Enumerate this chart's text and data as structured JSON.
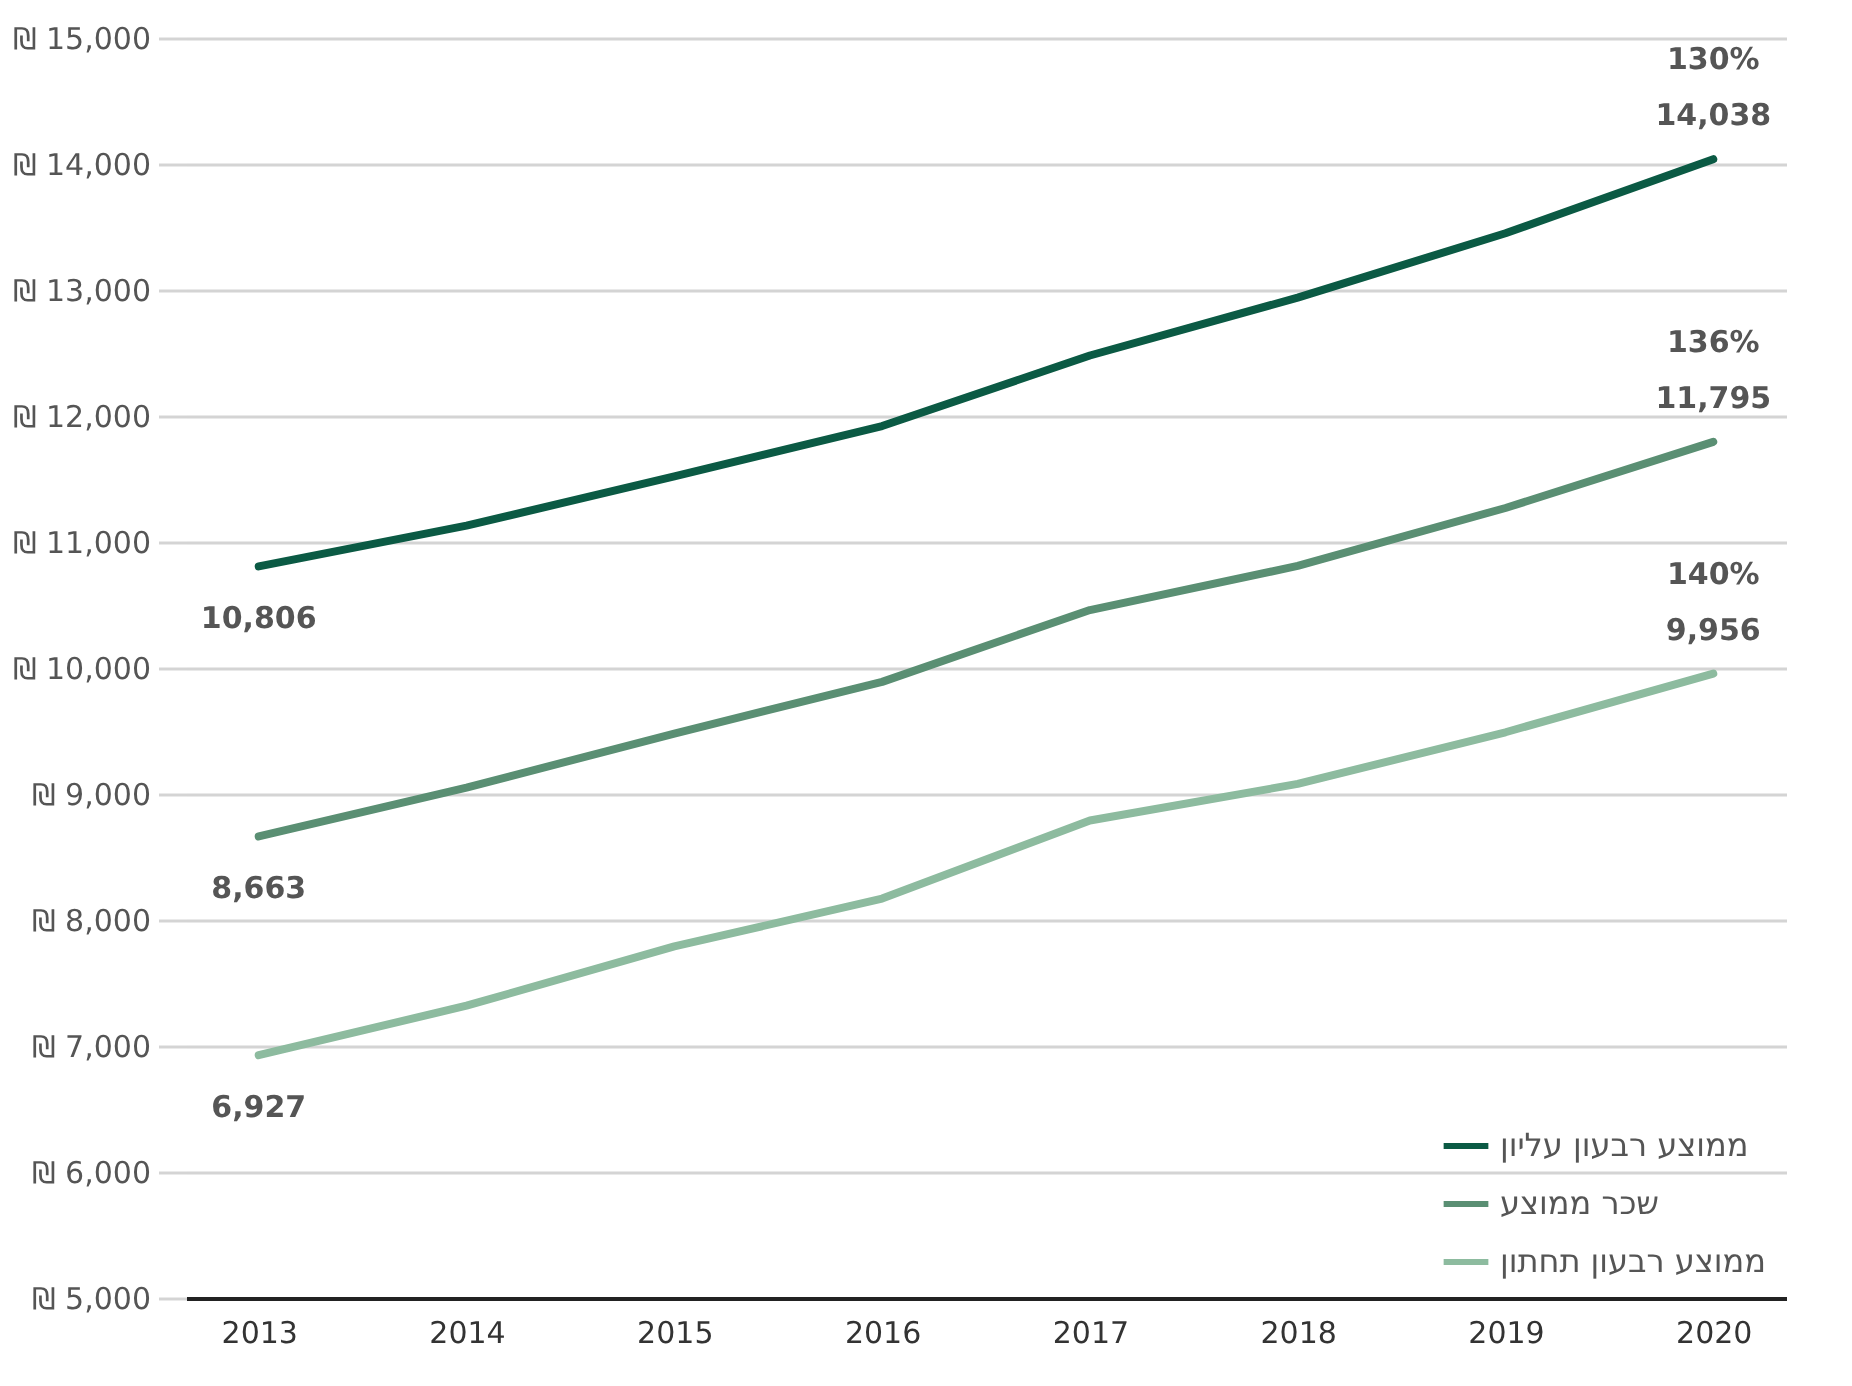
{
  "chart_data": {
    "type": "line",
    "categories": [
      "2013",
      "2014",
      "2015",
      "2016",
      "2017",
      "2018",
      "2019",
      "2020"
    ],
    "series": [
      {
        "name": "ממוצע רבעון עליון",
        "color": "#0b5a44",
        "values": [
          10806,
          11130,
          11520,
          11920,
          12480,
          12940,
          13450,
          14038
        ],
        "value_labels": [
          "10,806",
          null,
          null,
          null,
          null,
          null,
          null,
          "14,038"
        ]
      },
      {
        "name": "שכר ממוצע",
        "color": "#5a8f73",
        "values": [
          8663,
          9050,
          9480,
          9890,
          10460,
          10810,
          11270,
          11795
        ],
        "value_labels": [
          "8,663",
          null,
          null,
          null,
          null,
          null,
          null,
          "11,795"
        ]
      },
      {
        "name": "ממוצע רבעון תחתון",
        "color": "#8dbb9f",
        "values": [
          6927,
          7320,
          7790,
          8170,
          8790,
          9080,
          9490,
          9956
        ],
        "value_labels": [
          "6,927",
          null,
          null,
          null,
          null,
          null,
          null,
          "9,956"
        ]
      }
    ],
    "ylim": [
      5000,
      15000
    ],
    "yticks": [
      {
        "value": 5000,
        "label": "₪ 5,000"
      },
      {
        "value": 6000,
        "label": "₪ 6,000"
      },
      {
        "value": 7000,
        "label": "₪ 7,000"
      },
      {
        "value": 8000,
        "label": "₪ 8,000"
      },
      {
        "value": 9000,
        "label": "₪ 9,000"
      },
      {
        "value": 10000,
        "label": "₪ 10,000"
      },
      {
        "value": 11000,
        "label": "₪ 11,000"
      },
      {
        "value": 12000,
        "label": "₪ 12,000"
      },
      {
        "value": 13000,
        "label": "₪ 13,000"
      },
      {
        "value": 14000,
        "label": "₪ 14,000"
      },
      {
        "value": 15000,
        "label": "₪ 15,000"
      }
    ],
    "annotations": [
      {
        "text": "130%",
        "x": "2020",
        "y": 14038
      },
      {
        "text": "136%",
        "x": "2020",
        "y": 11795
      },
      {
        "text": "140%",
        "x": "2020",
        "y": 9956
      }
    ],
    "grid": "y",
    "legend": "bottom right",
    "marker": "none",
    "line_style": "solid"
  }
}
